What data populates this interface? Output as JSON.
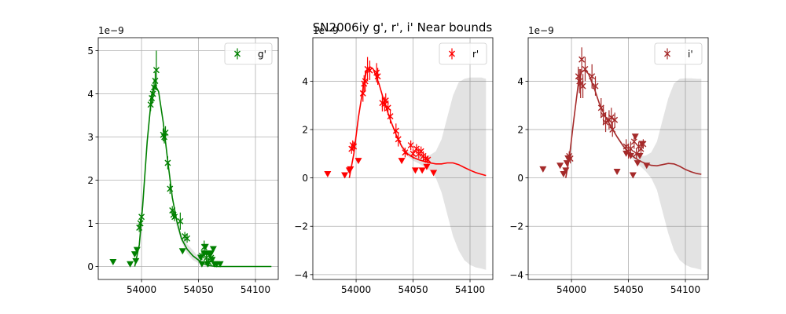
{
  "title": "SN2006iy  g', r', i' Near bounds",
  "chart_data": [
    {
      "type": "scatter",
      "band": "g'",
      "color": "#008000",
      "legend": "g'",
      "legend_loc": "upper right",
      "offset_label": "1e−9",
      "grid": true,
      "xlim": [
        53962,
        54120
      ],
      "ylim": [
        -0.3,
        5.3
      ],
      "xticks": [
        54000,
        54050,
        54100
      ],
      "yticks": [
        0,
        1,
        2,
        3,
        4,
        5
      ],
      "ytick_labels": [
        "0",
        "1",
        "2",
        "3",
        "4",
        "5"
      ],
      "detections": [
        [
          53998,
          0.9,
          0.1
        ],
        [
          53999,
          1.0,
          0.1
        ],
        [
          54000,
          1.15,
          0.1
        ],
        [
          54008,
          3.75,
          0.15
        ],
        [
          54009,
          3.9,
          0.15
        ],
        [
          54010,
          4.0,
          0.2
        ],
        [
          54011,
          4.15,
          0.2
        ],
        [
          54012,
          4.3,
          0.2
        ],
        [
          54013,
          4.55,
          0.45
        ],
        [
          54019,
          3.05,
          0.15
        ],
        [
          54020,
          3.0,
          0.15
        ],
        [
          54021,
          3.1,
          0.15
        ],
        [
          54023,
          2.4,
          0.15
        ],
        [
          54025,
          1.8,
          0.12
        ],
        [
          54027,
          1.3,
          0.1
        ],
        [
          54028,
          1.2,
          0.1
        ],
        [
          54029,
          1.15,
          0.1
        ],
        [
          54034,
          1.05,
          0.2
        ],
        [
          54038,
          0.7,
          0.1
        ],
        [
          54040,
          0.65,
          0.1
        ],
        [
          54053,
          0.25,
          0.1
        ],
        [
          54055,
          0.45,
          0.15
        ],
        [
          54057,
          0.2,
          0.1
        ],
        [
          54059,
          0.1,
          0.1
        ],
        [
          54061,
          0.2,
          0.1
        ]
      ],
      "upper_limits": [
        [
          53975,
          0.1
        ],
        [
          53990,
          0.05
        ],
        [
          53994,
          0.28
        ],
        [
          53995,
          0.12
        ],
        [
          53996,
          0.38
        ],
        [
          54036,
          0.35
        ],
        [
          54052,
          0.2
        ],
        [
          54053,
          0.05
        ],
        [
          54055,
          0.3
        ],
        [
          54056,
          0.45
        ],
        [
          54057,
          0.3
        ],
        [
          54058,
          0.05
        ],
        [
          54060,
          0.25
        ],
        [
          54061,
          0.3
        ],
        [
          54062,
          0.15
        ],
        [
          54063,
          0.4
        ],
        [
          54064,
          0.05
        ],
        [
          54066,
          0.05
        ],
        [
          54069,
          0.05
        ]
      ],
      "model": [
        [
          53994,
          0.0
        ],
        [
          53998,
          0.5
        ],
        [
          54001,
          1.4
        ],
        [
          54005,
          2.9
        ],
        [
          54009,
          4.0
        ],
        [
          54012,
          4.2
        ],
        [
          54015,
          4.05
        ],
        [
          54019,
          3.35
        ],
        [
          54023,
          2.45
        ],
        [
          54027,
          1.6
        ],
        [
          54031,
          1.05
        ],
        [
          54035,
          0.65
        ],
        [
          54040,
          0.4
        ],
        [
          54045,
          0.25
        ],
        [
          54050,
          0.15
        ],
        [
          54055,
          0.06
        ],
        [
          54060,
          0.02
        ],
        [
          54065,
          0.0
        ],
        [
          54114,
          0.0
        ]
      ],
      "band_hi": [
        [
          54030,
          1.1
        ],
        [
          54035,
          0.75
        ],
        [
          54040,
          0.52
        ],
        [
          54045,
          0.38
        ],
        [
          54050,
          0.22
        ],
        [
          54055,
          0.1
        ],
        [
          54060,
          0.04
        ],
        [
          54065,
          0.0
        ],
        [
          54114,
          0.0
        ]
      ],
      "band_lo": [
        [
          54030,
          1.0
        ],
        [
          54035,
          0.58
        ],
        [
          54040,
          0.3
        ],
        [
          54045,
          0.15
        ],
        [
          54050,
          0.08
        ],
        [
          54055,
          0.02
        ],
        [
          54060,
          0.0
        ],
        [
          54065,
          0.0
        ],
        [
          54114,
          0.0
        ]
      ]
    },
    {
      "type": "scatter",
      "band": "r'",
      "color": "#ff0000",
      "legend": "r'",
      "legend_loc": "upper right",
      "offset_label": "1e−9",
      "grid": true,
      "xlim": [
        53962,
        54120
      ],
      "ylim": [
        -4.2,
        5.8
      ],
      "xticks": [
        54000,
        54050,
        54100
      ],
      "yticks": [
        -4,
        -2,
        0,
        2,
        4
      ],
      "ytick_labels": [
        "−4",
        "−2",
        "0",
        "2",
        "4"
      ],
      "detections": [
        [
          53996,
          1.2,
          0.2
        ],
        [
          53997,
          1.35,
          0.2
        ],
        [
          53998,
          1.3,
          0.2
        ],
        [
          54006,
          3.5,
          0.35
        ],
        [
          54007,
          3.9,
          0.35
        ],
        [
          54008,
          4.0,
          0.4
        ],
        [
          54010,
          4.5,
          0.5
        ],
        [
          54012,
          4.45,
          0.4
        ],
        [
          54018,
          4.35,
          0.4
        ],
        [
          54019,
          4.2,
          0.35
        ],
        [
          54023,
          3.1,
          0.35
        ],
        [
          54025,
          3.05,
          0.3
        ],
        [
          54026,
          3.2,
          0.3
        ],
        [
          54028,
          2.9,
          0.3
        ],
        [
          54030,
          2.55,
          0.3
        ],
        [
          54035,
          1.95,
          0.3
        ],
        [
          54037,
          1.6,
          0.3
        ],
        [
          54043,
          1.05,
          0.2
        ],
        [
          54048,
          1.35,
          0.2
        ],
        [
          54050,
          1.0,
          0.2
        ],
        [
          54053,
          1.2,
          0.2
        ],
        [
          54055,
          1.0,
          0.2
        ],
        [
          54057,
          1.1,
          0.2
        ],
        [
          54059,
          0.9,
          0.2
        ],
        [
          54061,
          0.8,
          0.15
        ],
        [
          54063,
          0.75,
          0.15
        ]
      ],
      "upper_limits": [
        [
          53975,
          0.15
        ],
        [
          53990,
          0.1
        ],
        [
          53994,
          0.3
        ],
        [
          53995,
          0.35
        ],
        [
          54002,
          0.7
        ],
        [
          54040,
          0.7
        ],
        [
          54052,
          0.3
        ],
        [
          54058,
          0.3
        ],
        [
          54062,
          0.45
        ],
        [
          54068,
          0.2
        ]
      ],
      "model": [
        [
          53994,
          0.0
        ],
        [
          53998,
          1.0
        ],
        [
          54002,
          2.5
        ],
        [
          54006,
          3.7
        ],
        [
          54009,
          4.4
        ],
        [
          54012,
          4.6
        ],
        [
          54015,
          4.5
        ],
        [
          54020,
          3.9
        ],
        [
          54025,
          3.1
        ],
        [
          54030,
          2.4
        ],
        [
          54035,
          1.8
        ],
        [
          54040,
          1.3
        ],
        [
          54045,
          1.0
        ],
        [
          54050,
          0.85
        ],
        [
          54055,
          0.75
        ],
        [
          54060,
          0.68
        ],
        [
          54065,
          0.62
        ],
        [
          54070,
          0.58
        ],
        [
          54075,
          0.58
        ],
        [
          54080,
          0.62
        ],
        [
          54085,
          0.62
        ],
        [
          54090,
          0.55
        ],
        [
          54095,
          0.43
        ],
        [
          54100,
          0.32
        ],
        [
          54105,
          0.22
        ],
        [
          54110,
          0.15
        ],
        [
          54114,
          0.1
        ]
      ],
      "band_hi": [
        [
          54035,
          1.85
        ],
        [
          54040,
          1.38
        ],
        [
          54045,
          1.1
        ],
        [
          54050,
          0.98
        ],
        [
          54055,
          0.9
        ],
        [
          54060,
          0.9
        ],
        [
          54065,
          0.95
        ],
        [
          54070,
          1.1
        ],
        [
          54075,
          1.6
        ],
        [
          54080,
          2.5
        ],
        [
          54085,
          3.4
        ],
        [
          54090,
          3.95
        ],
        [
          54095,
          4.1
        ],
        [
          54100,
          4.15
        ],
        [
          54105,
          4.15
        ],
        [
          54110,
          4.15
        ],
        [
          54114,
          4.1
        ]
      ],
      "band_lo": [
        [
          54035,
          1.75
        ],
        [
          54040,
          1.22
        ],
        [
          54045,
          0.9
        ],
        [
          54050,
          0.72
        ],
        [
          54055,
          0.6
        ],
        [
          54060,
          0.45
        ],
        [
          54065,
          0.3
        ],
        [
          54070,
          0.0
        ],
        [
          54075,
          -0.6
        ],
        [
          54080,
          -1.5
        ],
        [
          54085,
          -2.4
        ],
        [
          54090,
          -3.0
        ],
        [
          54095,
          -3.4
        ],
        [
          54100,
          -3.6
        ],
        [
          54105,
          -3.7
        ],
        [
          54110,
          -3.75
        ],
        [
          54114,
          -3.8
        ]
      ]
    },
    {
      "type": "scatter",
      "band": "i'",
      "color": "#a52a2a",
      "legend": "i'",
      "legend_loc": "upper right",
      "offset_label": "1e−9",
      "grid": true,
      "xlim": [
        53962,
        54120
      ],
      "ylim": [
        -4.2,
        5.8
      ],
      "xticks": [
        54000,
        54050,
        54100
      ],
      "yticks": [
        -4,
        -2,
        0,
        2,
        4
      ],
      "ytick_labels": [
        "−4",
        "−2",
        "0",
        "2",
        "4"
      ],
      "detections": [
        [
          53998,
          0.9,
          0.2
        ],
        [
          53999,
          0.8,
          0.2
        ],
        [
          54006,
          4.2,
          0.4
        ],
        [
          54007,
          4.0,
          0.5
        ],
        [
          54008,
          3.9,
          0.6
        ],
        [
          54009,
          4.9,
          0.5
        ],
        [
          54010,
          3.8,
          0.5
        ],
        [
          54012,
          4.5,
          0.5
        ],
        [
          54018,
          4.2,
          0.5
        ],
        [
          54021,
          3.8,
          0.4
        ],
        [
          54026,
          2.9,
          0.4
        ],
        [
          54028,
          2.6,
          0.4
        ],
        [
          54030,
          2.3,
          0.4
        ],
        [
          54033,
          2.4,
          0.4
        ],
        [
          54035,
          2.5,
          0.4
        ],
        [
          54036,
          2.0,
          0.3
        ],
        [
          54038,
          2.4,
          0.3
        ],
        [
          54048,
          1.3,
          0.3
        ],
        [
          54050,
          1.1,
          0.3
        ],
        [
          54052,
          1.2,
          0.3
        ],
        [
          54055,
          1.5,
          0.3
        ],
        [
          54057,
          1.0,
          0.2
        ],
        [
          54059,
          1.3,
          0.2
        ],
        [
          54061,
          1.2,
          0.2
        ],
        [
          54063,
          1.4,
          0.2
        ]
      ],
      "upper_limits": [
        [
          53975,
          0.35
        ],
        [
          53990,
          0.5
        ],
        [
          53993,
          0.15
        ],
        [
          53995,
          0.3
        ],
        [
          53996,
          0.6
        ],
        [
          53997,
          0.8
        ],
        [
          54040,
          0.25
        ],
        [
          54048,
          1.0
        ],
        [
          54052,
          0.9
        ],
        [
          54054,
          0.1
        ],
        [
          54056,
          1.7
        ],
        [
          54058,
          0.6
        ],
        [
          54060,
          0.9
        ],
        [
          54062,
          1.4
        ],
        [
          54066,
          0.5
        ]
      ],
      "model": [
        [
          53995,
          0.0
        ],
        [
          53998,
          0.8
        ],
        [
          54002,
          2.4
        ],
        [
          54006,
          3.9
        ],
        [
          54009,
          4.4
        ],
        [
          54012,
          4.45
        ],
        [
          54015,
          4.3
        ],
        [
          54020,
          3.7
        ],
        [
          54025,
          3.0
        ],
        [
          54030,
          2.5
        ],
        [
          54035,
          2.1
        ],
        [
          54040,
          1.7
        ],
        [
          54045,
          1.35
        ],
        [
          54050,
          1.05
        ],
        [
          54055,
          0.85
        ],
        [
          54060,
          0.7
        ],
        [
          54065,
          0.6
        ],
        [
          54070,
          0.52
        ],
        [
          54075,
          0.5
        ],
        [
          54080,
          0.55
        ],
        [
          54085,
          0.6
        ],
        [
          54090,
          0.58
        ],
        [
          54095,
          0.48
        ],
        [
          54100,
          0.35
        ],
        [
          54105,
          0.25
        ],
        [
          54110,
          0.18
        ],
        [
          54114,
          0.15
        ]
      ],
      "band_hi": [
        [
          54040,
          1.75
        ],
        [
          54045,
          1.42
        ],
        [
          54050,
          1.15
        ],
        [
          54055,
          0.98
        ],
        [
          54060,
          0.9
        ],
        [
          54065,
          0.92
        ],
        [
          54070,
          1.05
        ],
        [
          54075,
          1.5
        ],
        [
          54080,
          2.4
        ],
        [
          54085,
          3.3
        ],
        [
          54090,
          3.9
        ],
        [
          54095,
          4.1
        ],
        [
          54100,
          4.12
        ],
        [
          54105,
          4.12
        ],
        [
          54110,
          4.1
        ],
        [
          54114,
          4.1
        ]
      ],
      "band_lo": [
        [
          54040,
          1.65
        ],
        [
          54045,
          1.28
        ],
        [
          54050,
          0.95
        ],
        [
          54055,
          0.72
        ],
        [
          54060,
          0.5
        ],
        [
          54065,
          0.28
        ],
        [
          54070,
          0.0
        ],
        [
          54075,
          -0.5
        ],
        [
          54080,
          -1.4
        ],
        [
          54085,
          -2.3
        ],
        [
          54090,
          -3.0
        ],
        [
          54095,
          -3.4
        ],
        [
          54100,
          -3.6
        ],
        [
          54105,
          -3.7
        ],
        [
          54110,
          -3.75
        ],
        [
          54114,
          -3.8
        ]
      ]
    }
  ]
}
